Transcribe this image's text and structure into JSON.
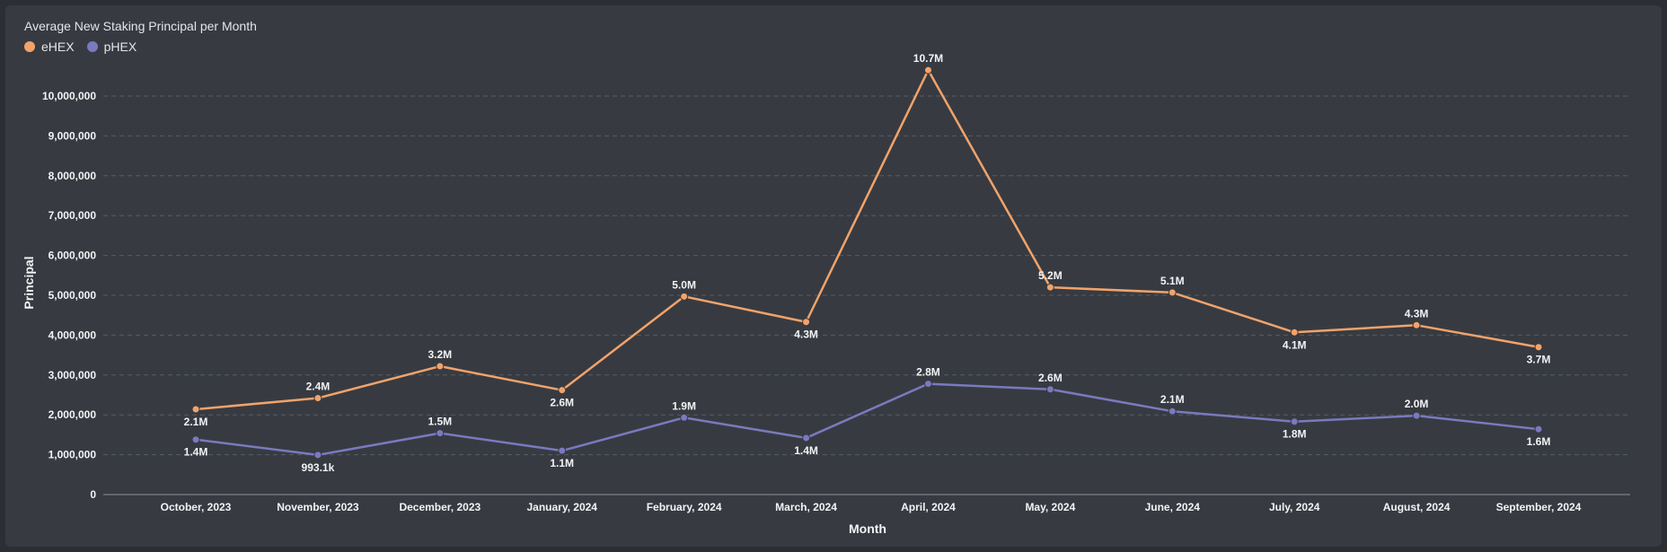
{
  "chart_data": {
    "type": "line",
    "title": "Average New Staking Principal per Month",
    "xlabel": "Month",
    "ylabel": "Principal",
    "ylim": [
      0,
      10000000
    ],
    "yticks": [
      "0",
      "1,000,000",
      "2,000,000",
      "3,000,000",
      "4,000,000",
      "5,000,000",
      "6,000,000",
      "7,000,000",
      "8,000,000",
      "9,000,000",
      "10,000,000"
    ],
    "grid": true,
    "legend_position": "top-left",
    "categories": [
      "October, 2023",
      "November, 2023",
      "December, 2023",
      "January, 2024",
      "February, 2024",
      "March, 2024",
      "April, 2024",
      "May, 2024",
      "June, 2024",
      "July, 2024",
      "August, 2024",
      "September, 2024"
    ],
    "series": [
      {
        "name": "eHEX",
        "color": "#f2a36b",
        "values": [
          2140000,
          2420000,
          3220000,
          2620000,
          4970000,
          4330000,
          10650000,
          5200000,
          5070000,
          4070000,
          4250000,
          3700000
        ],
        "labels": [
          "2.1M",
          "2.4M",
          "3.2M",
          "2.6M",
          "5.0M",
          "4.3M",
          "10.7M",
          "5.2M",
          "5.1M",
          "4.1M",
          "4.3M",
          "3.7M"
        ],
        "label_pos": [
          "below",
          "above",
          "above",
          "below",
          "above",
          "below",
          "above",
          "above",
          "above",
          "below",
          "above",
          "below"
        ]
      },
      {
        "name": "pHEX",
        "color": "#7b79bf",
        "values": [
          1380000,
          993100,
          1540000,
          1100000,
          1930000,
          1420000,
          2780000,
          2640000,
          2090000,
          1830000,
          1980000,
          1640000
        ],
        "labels": [
          "1.4M",
          "993.1k",
          "1.5M",
          "1.1M",
          "1.9M",
          "1.4M",
          "2.8M",
          "2.6M",
          "2.1M",
          "1.8M",
          "2.0M",
          "1.6M"
        ],
        "label_pos": [
          "below",
          "below",
          "above",
          "below",
          "above",
          "below",
          "above",
          "above",
          "above",
          "below",
          "above",
          "below"
        ]
      }
    ]
  }
}
